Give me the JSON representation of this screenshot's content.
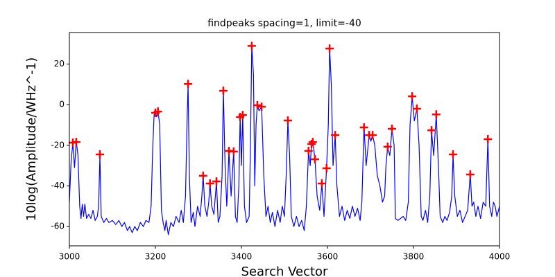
{
  "chart_data": {
    "type": "line",
    "title": "findpeaks spacing=1, limit=-40",
    "xlabel": "Search Vector",
    "ylabel": "10log(Amplitude/WHz^-1)",
    "xlim": [
      3000,
      4000
    ],
    "ylim": [
      -69.5,
      35.5
    ],
    "xticks": [
      3000,
      3200,
      3400,
      3600,
      3800,
      4000
    ],
    "yticks": [
      -60,
      -40,
      -20,
      0,
      20
    ],
    "grid": false,
    "series": [
      {
        "color": "#0000ff",
        "x": [
          3000,
          3004,
          3008,
          3012,
          3016,
          3020,
          3024,
          3027,
          3030,
          3033,
          3036,
          3040,
          3045,
          3050,
          3055,
          3060,
          3065,
          3068,
          3071,
          3074,
          3080,
          3086,
          3092,
          3100,
          3108,
          3115,
          3122,
          3128,
          3135,
          3140,
          3146,
          3152,
          3158,
          3165,
          3172,
          3178,
          3185,
          3190,
          3194,
          3197,
          3200,
          3203,
          3206,
          3210,
          3214,
          3218,
          3222,
          3225,
          3230,
          3236,
          3242,
          3248,
          3255,
          3260,
          3265,
          3270,
          3274,
          3276,
          3279,
          3283,
          3288,
          3292,
          3298,
          3304,
          3308,
          3311,
          3315,
          3320,
          3324,
          3327,
          3331,
          3336,
          3342,
          3346,
          3350,
          3355,
          3358,
          3362,
          3366,
          3371,
          3376,
          3382,
          3386,
          3390,
          3394,
          3397,
          3400,
          3403,
          3407,
          3412,
          3418,
          3421,
          3424,
          3428,
          3431,
          3434,
          3437,
          3441,
          3447,
          3452,
          3457,
          3462,
          3467,
          3472,
          3478,
          3484,
          3490,
          3495,
          3500,
          3504,
          3508,
          3512,
          3516,
          3522,
          3528,
          3534,
          3540,
          3546,
          3551,
          3556,
          3560,
          3563,
          3566,
          3571,
          3576,
          3582,
          3587,
          3592,
          3598,
          3602,
          3605,
          3609,
          3613,
          3618,
          3622,
          3628,
          3634,
          3640,
          3646,
          3652,
          3658,
          3664,
          3670,
          3676,
          3680,
          3685,
          3690,
          3697,
          3701,
          3705,
          3710,
          3716,
          3722,
          3728,
          3733,
          3736,
          3740,
          3745,
          3750,
          3755,
          3758,
          3764,
          3770,
          3776,
          3782,
          3788,
          3792,
          3797,
          3802,
          3808,
          3813,
          3818,
          3822,
          3828,
          3833,
          3838,
          3842,
          3847,
          3853,
          3858,
          3862,
          3868,
          3873,
          3878,
          3884,
          3889,
          3892,
          3896,
          3902,
          3908,
          3914,
          3920,
          3926,
          3932,
          3936,
          3940,
          3945,
          3950,
          3956,
          3962,
          3968,
          3973,
          3977,
          3982,
          3986,
          3990,
          3994,
          4000
        ],
        "values": [
          -48,
          -28,
          -19,
          -31,
          -18,
          -25,
          -50,
          -56,
          -49,
          -55,
          -49,
          -56,
          -54,
          -56,
          -52,
          -57,
          -55,
          -50,
          -25,
          -55,
          -58,
          -56,
          -58,
          -57,
          -59,
          -57,
          -60,
          -58,
          -62,
          -60,
          -63,
          -60,
          -62,
          -58,
          -60,
          -57,
          -58,
          -50,
          -20,
          -5,
          -4,
          -6,
          -3,
          -10,
          -52,
          -58,
          -62,
          -57,
          -64,
          -58,
          -60,
          -55,
          -58,
          -52,
          -58,
          -45,
          -5,
          10,
          -35,
          -58,
          -53,
          -60,
          -50,
          -55,
          -45,
          -35,
          -50,
          -55,
          -48,
          -39,
          -50,
          -54,
          -38,
          -58,
          -55,
          -35,
          7,
          -30,
          -50,
          -23,
          -45,
          -23,
          -55,
          -58,
          -40,
          -6,
          -30,
          -5,
          -50,
          -58,
          -55,
          -20,
          29,
          15,
          -40,
          -10,
          0,
          -3,
          -1,
          -35,
          -55,
          -50,
          -58,
          -53,
          -60,
          -52,
          -58,
          -50,
          -55,
          -35,
          -8,
          -25,
          -55,
          -60,
          -55,
          -60,
          -57,
          -62,
          -50,
          -23,
          -30,
          -19,
          -18,
          -27,
          -45,
          -52,
          -39,
          -55,
          -31,
          -10,
          28,
          10,
          -30,
          -15,
          -40,
          -55,
          -50,
          -57,
          -52,
          -56,
          -50,
          -55,
          -51,
          -57,
          -48,
          -11,
          -30,
          -15,
          -18,
          -15,
          -20,
          -35,
          -40,
          -48,
          -45,
          -30,
          -21,
          -25,
          -12,
          -20,
          -56,
          -57,
          -56,
          -55,
          -57,
          -48,
          -10,
          4,
          -8,
          -2,
          -20,
          -55,
          -57,
          -52,
          -58,
          -45,
          -13,
          -25,
          -5,
          -30,
          -55,
          -58,
          -55,
          -57,
          -53,
          -45,
          -25,
          -45,
          -55,
          -52,
          -58,
          -55,
          -52,
          -34,
          -50,
          -48,
          -55,
          -50,
          -56,
          -48,
          -50,
          -17,
          -50,
          -55,
          -48,
          -50,
          -55,
          -50
        ]
      },
      {
        "color": "#ff0000",
        "marker": "+",
        "x": [
          3008,
          3016,
          3071,
          3200,
          3206,
          3276,
          3311,
          3327,
          3342,
          3358,
          3371,
          3382,
          3397,
          3403,
          3424,
          3437,
          3447,
          3508,
          3556,
          3563,
          3566,
          3571,
          3587,
          3598,
          3605,
          3618,
          3685,
          3697,
          3705,
          3740,
          3750,
          3797,
          3808,
          3842,
          3853,
          3892,
          3932,
          3973
        ],
        "values": [
          -18.7,
          -18.4,
          -24.5,
          -4,
          -3.4,
          10.2,
          -35,
          -38.8,
          -37.8,
          6.8,
          -22.8,
          -23.1,
          -6.1,
          -5.1,
          28.9,
          -0.3,
          -1,
          -7.8,
          -22.8,
          -19.4,
          -18.4,
          -26.9,
          -38.8,
          -31.3,
          27.6,
          -15,
          -11.2,
          -15,
          -15,
          -20.7,
          -11.9,
          4.1,
          -2,
          -12.6,
          -4.8,
          -24.5,
          -34.4,
          -17
        ]
      }
    ]
  }
}
